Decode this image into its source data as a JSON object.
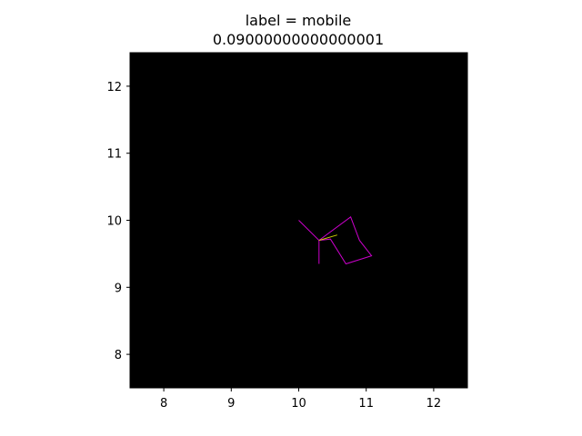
{
  "chart_data": {
    "type": "line",
    "title_lines": [
      "label = mobile",
      "0.09000000000000001"
    ],
    "xlabel": "",
    "ylabel": "",
    "xlim": [
      7.5,
      12.5
    ],
    "ylim": [
      7.5,
      12.5
    ],
    "xticks": [
      8,
      9,
      10,
      11,
      12
    ],
    "yticks": [
      8,
      9,
      10,
      11,
      12
    ],
    "xtick_labels": [
      "8",
      "9",
      "10",
      "11",
      "12"
    ],
    "ytick_labels": [
      "8",
      "9",
      "10",
      "11",
      "12"
    ],
    "background_color": "#000000",
    "grid": false,
    "series": [
      {
        "color": "#cc00cc",
        "points": [
          [
            10.0,
            10.0
          ],
          [
            10.3,
            9.7
          ],
          [
            10.77,
            10.05
          ],
          [
            10.9,
            9.7
          ],
          [
            11.08,
            9.47
          ],
          [
            10.7,
            9.35
          ],
          [
            10.47,
            9.72
          ],
          [
            10.3,
            9.7
          ],
          [
            10.3,
            9.35
          ]
        ]
      },
      {
        "color": "#cccc00",
        "points": [
          [
            10.3,
            9.7
          ],
          [
            10.57,
            9.78
          ]
        ]
      }
    ]
  }
}
